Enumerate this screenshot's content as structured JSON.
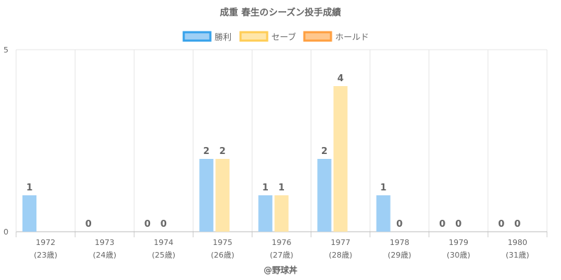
{
  "chart_data": {
    "type": "bar",
    "title": "成重 春生のシーズン投手成績",
    "categories": [
      "1972",
      "1973",
      "1974",
      "1975",
      "1976",
      "1977",
      "1978",
      "1979",
      "1980"
    ],
    "category_sublabels": [
      "(23歳)",
      "(24歳)",
      "(25歳)",
      "(26歳)",
      "(27歳)",
      "(28歳)",
      "(29歳)",
      "(30歳)",
      "(31歳)"
    ],
    "series": [
      {
        "name": "勝利",
        "values": [
          1,
          0,
          0,
          2,
          1,
          2,
          1,
          0,
          0
        ],
        "color": "#9ecff5",
        "border": "#36a2eb"
      },
      {
        "name": "セーブ",
        "values": [
          null,
          null,
          0,
          2,
          1,
          4,
          0,
          0,
          0
        ],
        "color": "#ffe6a9",
        "border": "#ffcd56"
      },
      {
        "name": "ホールド",
        "values": [
          null,
          null,
          null,
          null,
          null,
          null,
          null,
          null,
          null
        ],
        "color": "#ffc78d",
        "border": "#ff9f40"
      }
    ],
    "ylim": [
      0,
      5
    ],
    "y_ticks": [
      "0",
      "5"
    ],
    "grid": true,
    "legend_position": "top"
  },
  "credit": "@野球丼"
}
